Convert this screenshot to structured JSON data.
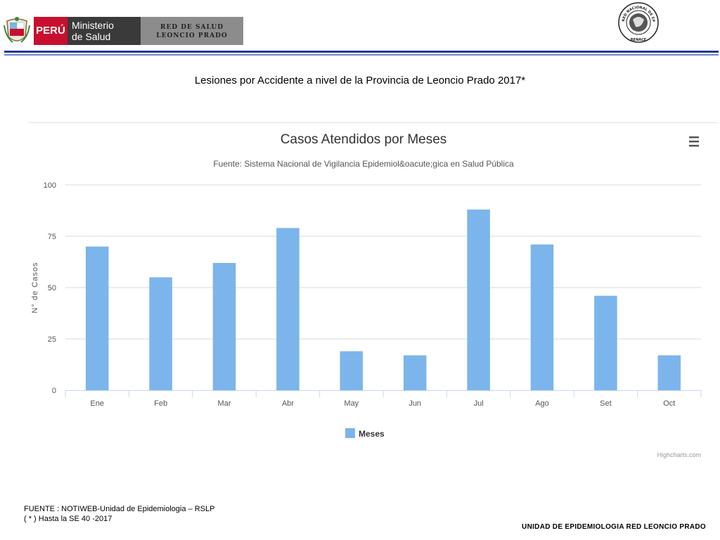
{
  "header": {
    "country": "PERÚ",
    "ministry_line1": "Ministerio",
    "ministry_line2": "de Salud",
    "network_line1": "RED DE SALUD",
    "network_line2": "LEONCIO PRADO",
    "seal_text": "RED NACIONAL DE EPIDEMIOLOGIA",
    "seal_bottom": "RENACE"
  },
  "slide_title": "Lesiones por Accidente a nivel de la Provincia de Leoncio Prado 2017*",
  "chart_data": {
    "type": "bar",
    "title": "Casos Atendidos por Meses",
    "subtitle": "Fuente: Sistema Nacional de Vigilancia Epidemiol&oacute;gica en Salud Pública",
    "ylabel": "N° de Casos",
    "xlabel": "",
    "ylim": [
      0,
      100
    ],
    "yticks": [
      0,
      25,
      50,
      75,
      100
    ],
    "grid": true,
    "legend_position": "bottom-center",
    "categories": [
      "Ene",
      "Feb",
      "Mar",
      "Abr",
      "May",
      "Jun",
      "Jul",
      "Ago",
      "Set",
      "Oct"
    ],
    "series": [
      {
        "name": "Meses",
        "values": [
          70,
          55,
          62,
          79,
          19,
          17,
          88,
          71,
          46,
          17
        ],
        "color": "#7cb5ec"
      }
    ],
    "credits": "Highcharts.com"
  },
  "footer": {
    "source": "FUENTE : NOTIWEB-Unidad de Epidemiologia – RSLP",
    "cutoff": "( * ) Hasta la SE  40 -2017",
    "unit": "UNIDAD  DE EPIDEMIOLOGIA RED LEONCIO PRADO"
  }
}
